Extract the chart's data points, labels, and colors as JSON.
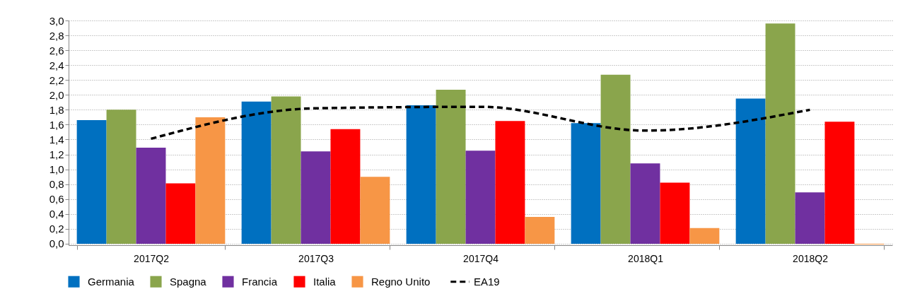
{
  "chart_data": {
    "type": "bar",
    "categories": [
      "2017Q2",
      "2017Q3",
      "2017Q4",
      "2018Q1",
      "2018Q2"
    ],
    "ylim": [
      -0.02,
      3.0
    ],
    "yticks": [
      {
        "value": 0,
        "label": "0,0"
      },
      {
        "value": 0.2,
        "label": "0,2"
      },
      {
        "value": 0.4,
        "label": "0,4"
      },
      {
        "value": 0.6,
        "label": "0,6"
      },
      {
        "value": 0.8,
        "label": "0,8"
      },
      {
        "value": 1.0,
        "label": "1,0"
      },
      {
        "value": 1.2,
        "label": "1,2"
      },
      {
        "value": 1.4,
        "label": "1,4"
      },
      {
        "value": 1.6,
        "label": "1,6"
      },
      {
        "value": 1.8,
        "label": "1,8"
      },
      {
        "value": 2.0,
        "label": "2,0"
      },
      {
        "value": 2.2,
        "label": "2,2"
      },
      {
        "value": 2.4,
        "label": "2,4"
      },
      {
        "value": 2.6,
        "label": "2,6"
      },
      {
        "value": 2.8,
        "label": "2,8"
      },
      {
        "value": 3.0,
        "label": "3,0"
      }
    ],
    "grid": "y",
    "legend": "bottom",
    "series": [
      {
        "name": "Germania",
        "color": "#0070c0",
        "values": [
          1.66,
          1.91,
          1.86,
          1.62,
          1.95
        ]
      },
      {
        "name": "Spagna",
        "color": "#8aa54c",
        "values": [
          1.8,
          1.98,
          2.07,
          2.27,
          2.96
        ]
      },
      {
        "name": "Francia",
        "color": "#7030a0",
        "values": [
          1.29,
          1.24,
          1.25,
          1.08,
          0.69
        ]
      },
      {
        "name": "Italia",
        "color": "#ff0000",
        "values": [
          0.81,
          1.54,
          1.65,
          0.82,
          1.64
        ]
      },
      {
        "name": "Regno Unito",
        "color": "#f79646",
        "values": [
          1.7,
          0.9,
          0.36,
          0.21,
          -0.01
        ]
      },
      {
        "name": "EA19",
        "color": "#000000",
        "type": "line",
        "line_style": "dashed",
        "marker": "none",
        "values": [
          1.41,
          1.82,
          1.84,
          1.52,
          1.8
        ]
      }
    ]
  }
}
